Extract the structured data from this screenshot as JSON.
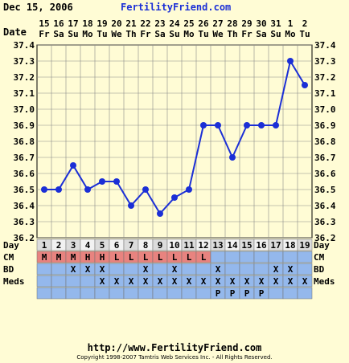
{
  "header": {
    "date": "Dec 15, 2006",
    "brand": "FertilityFriend.com"
  },
  "footer": {
    "url": "http://www.FertilityFriend.com",
    "copyright": "Copyright 1998-2007 Tamtris Web Services Inc. - All Rights Reserved."
  },
  "row_labels": {
    "date": "Date",
    "day": "Day",
    "cm": "CM",
    "bd": "BD",
    "meds": "Meds"
  },
  "dates": [
    "15",
    "16",
    "17",
    "18",
    "19",
    "20",
    "21",
    "22",
    "23",
    "24",
    "25",
    "26",
    "27",
    "28",
    "29",
    "30",
    "31",
    "1",
    "2"
  ],
  "weekdays": [
    "Fr",
    "Sa",
    "Su",
    "Mo",
    "Tu",
    "We",
    "Th",
    "Fr",
    "Sa",
    "Su",
    "Mo",
    "Tu",
    "We",
    "Th",
    "Fr",
    "Sa",
    "Su",
    "Mo",
    "Tu"
  ],
  "cycle_days": [
    "1",
    "2",
    "3",
    "4",
    "5",
    "6",
    "7",
    "8",
    "9",
    "10",
    "11",
    "12",
    "13",
    "14",
    "15",
    "16",
    "17",
    "18",
    "19"
  ],
  "cm": [
    "M",
    "M",
    "M",
    "H",
    "H",
    "L",
    "L",
    "L",
    "L",
    "L",
    "L",
    "L",
    "",
    "",
    "",
    "",
    "",
    "",
    ""
  ],
  "bd": [
    "",
    "",
    "X",
    "X",
    "X",
    "",
    "",
    "X",
    "",
    "X",
    "",
    "",
    "X",
    "",
    "",
    "",
    "X",
    "X",
    ""
  ],
  "meds": [
    "",
    "",
    "",
    "",
    "X",
    "X",
    "X",
    "X",
    "X",
    "X",
    "X",
    "X",
    "X",
    "X",
    "X",
    "X",
    "X",
    "X",
    "X"
  ],
  "meds_extra": [
    "",
    "",
    "",
    "",
    "",
    "",
    "",
    "",
    "",
    "",
    "",
    "",
    "P",
    "P",
    "P",
    "P",
    "",
    "",
    ""
  ],
  "colors": {
    "background": "#fffcd5",
    "grid": "#8a8a8a",
    "line": "#1b2fd6",
    "point": "#1b2fd6",
    "cm_cell": "#e8837f",
    "row_cell": "#94b8ec",
    "day_cell": "#dcdcdc",
    "day_cell_alt": "#f2f2f2"
  },
  "chart_data": {
    "type": "line",
    "series": [
      {
        "values": [
          36.5,
          36.5,
          36.65,
          36.5,
          36.55,
          36.55,
          36.4,
          36.5,
          36.35,
          36.45,
          36.5,
          36.9,
          36.9,
          36.7,
          36.9,
          36.9,
          36.9,
          37.3,
          37.15
        ]
      }
    ],
    "x": [
      "15",
      "16",
      "17",
      "18",
      "19",
      "20",
      "21",
      "22",
      "23",
      "24",
      "25",
      "26",
      "27",
      "28",
      "29",
      "30",
      "31",
      "1",
      "2"
    ],
    "y_ticks": [
      "37.4",
      "37.3",
      "37.2",
      "37.1",
      "37.0",
      "36.9",
      "36.8",
      "36.7",
      "36.6",
      "36.5",
      "36.4",
      "36.3",
      "36.2"
    ],
    "ylim": [
      36.2,
      37.4
    ],
    "grid": true
  }
}
